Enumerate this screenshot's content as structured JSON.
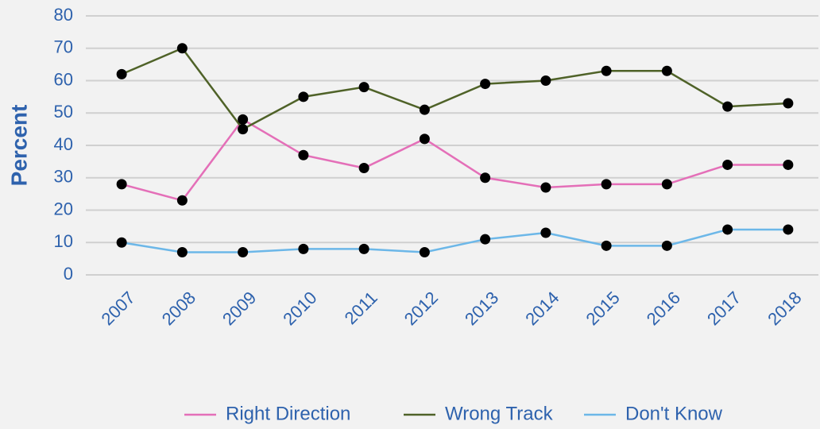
{
  "chart_data": {
    "type": "line",
    "y_label": "Percent",
    "categories": [
      "2007",
      "2008",
      "2009",
      "2010",
      "2011",
      "2012",
      "2013",
      "2014",
      "2015",
      "2016",
      "2017",
      "2018"
    ],
    "series": [
      {
        "name": "Right Direction",
        "color": "#e46fb8",
        "values": [
          28,
          23,
          48,
          37,
          33,
          42,
          30,
          27,
          28,
          28,
          34,
          34
        ]
      },
      {
        "name": "Wrong Track",
        "color": "#4f6228",
        "values": [
          62,
          70,
          45,
          55,
          58,
          51,
          59,
          60,
          63,
          63,
          52,
          53
        ]
      },
      {
        "name": "Don't Know",
        "color": "#6cb7e8",
        "values": [
          10,
          7,
          7,
          8,
          8,
          7,
          11,
          13,
          9,
          9,
          14,
          14
        ]
      }
    ],
    "marker_color": "#000000",
    "ylim": [
      0,
      80
    ],
    "yticks": [
      0,
      10,
      20,
      30,
      40,
      50,
      60,
      70,
      80
    ],
    "grid": true,
    "legend": "bottom"
  }
}
